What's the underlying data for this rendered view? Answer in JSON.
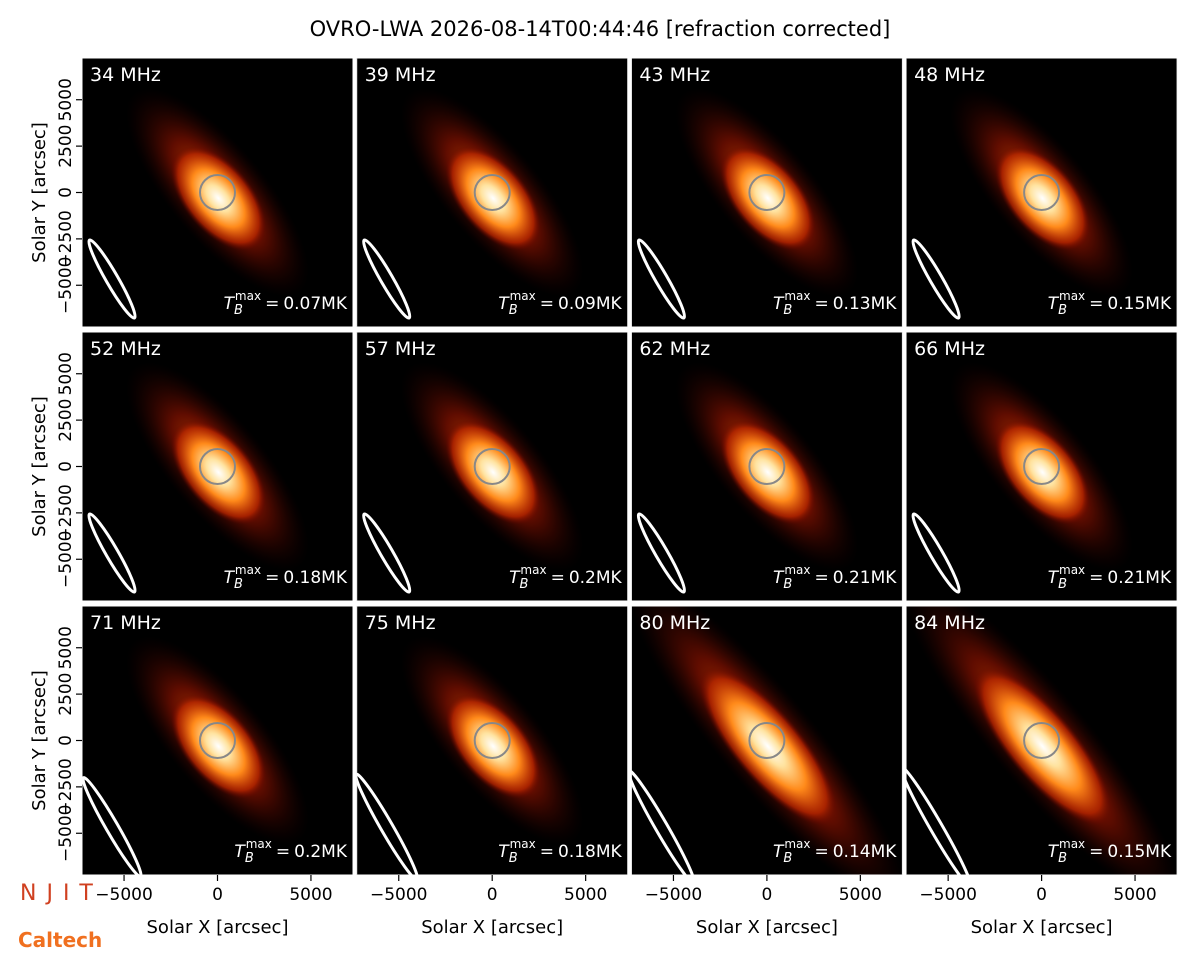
{
  "chart_data": {
    "type": "image-grid",
    "title": "OVRO-LWA 2026-08-14T00:44:46 [refraction corrected]",
    "xlabel": "Solar X [arcsec]",
    "ylabel": "Solar Y [arcsec]",
    "xlim": [
      -7250,
      7250
    ],
    "ylim": [
      -7250,
      7250
    ],
    "xticks": [
      {
        "value": -5000,
        "label": "−5000"
      },
      0,
      5000
    ],
    "yticks": [
      {
        "value": -5000,
        "label": "−5000"
      },
      {
        "value": -2500,
        "label": "−2500"
      },
      0,
      2500,
      5000
    ],
    "tb_symbol": "T",
    "tb_subscript": "B",
    "tb_superscript": "max",
    "tb_equals": "=",
    "panels": [
      {
        "label": "34 MHz",
        "tb_max": {
          "value": 0.07,
          "label": "0.07MK"
        }
      },
      {
        "label": "39 MHz",
        "tb_max": {
          "value": 0.09,
          "label": "0.09MK"
        }
      },
      {
        "label": "43 MHz",
        "tb_max": {
          "value": 0.13,
          "label": "0.13MK"
        }
      },
      {
        "label": "48 MHz",
        "tb_max": {
          "value": 0.15,
          "label": "0.15MK"
        }
      },
      {
        "label": "52 MHz",
        "tb_max": {
          "value": 0.18,
          "label": "0.18MK"
        }
      },
      {
        "label": "57 MHz",
        "tb_max": {
          "value": 0.2,
          "label": "0.2MK"
        }
      },
      {
        "label": "62 MHz",
        "tb_max": {
          "value": 0.21,
          "label": "0.21MK"
        }
      },
      {
        "label": "66 MHz",
        "tb_max": {
          "value": 0.21,
          "label": "0.21MK"
        }
      },
      {
        "label": "71 MHz",
        "tb_max": {
          "value": 0.2,
          "label": "0.2MK"
        }
      },
      {
        "label": "75 MHz",
        "tb_max": {
          "value": 0.18,
          "label": "0.18MK"
        }
      },
      {
        "label": "80 MHz",
        "tb_max": {
          "value": 0.14,
          "label": "0.14MK"
        }
      },
      {
        "label": "84 MHz",
        "tb_max": {
          "value": 0.15,
          "label": "0.15MK"
        }
      }
    ],
    "logos": [
      "NJIT",
      "Caltech"
    ]
  }
}
